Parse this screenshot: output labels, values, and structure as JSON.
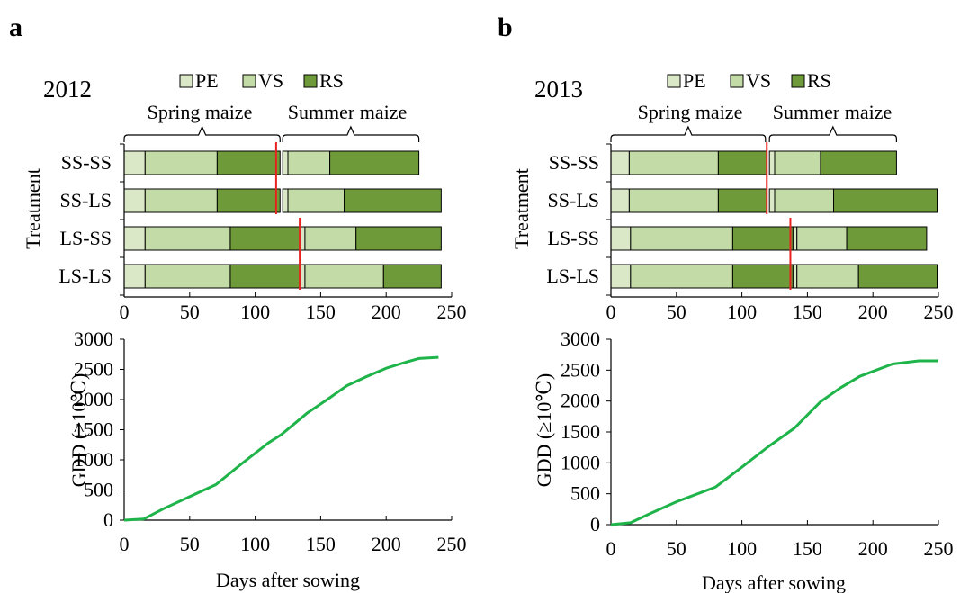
{
  "colors": {
    "pe": "#dbe8c7",
    "vs": "#c3dca7",
    "rs": "#6f9a3a",
    "gdd_line": "#1fb44a",
    "marker": "#e8231f",
    "axis": "#000000"
  },
  "panels": [
    {
      "panel_label": "a",
      "year": "2012",
      "legend": [
        "PE",
        "VS",
        "RS"
      ],
      "brace_labels": [
        "Spring maize",
        "Summer maize"
      ],
      "brace_ranges": [
        [
          0,
          119
        ],
        [
          121,
          225
        ]
      ],
      "gantt_ylabel": "Treatment",
      "gantt_xticks": [
        "0",
        "50",
        "100",
        "150",
        "200",
        "250"
      ],
      "gdd_ylabel": "GDD (≥10℃)",
      "gdd_yticks": [
        "0",
        "500",
        "1000",
        "1500",
        "2000",
        "2500",
        "3000"
      ],
      "gdd_xticks": [
        "0",
        "50",
        "100",
        "150",
        "200",
        "250"
      ],
      "xlabel": "Days after sowing"
    },
    {
      "panel_label": "b",
      "year": "2013",
      "legend": [
        "PE",
        "VS",
        "RS"
      ],
      "brace_labels": [
        "Spring maize",
        "Summer maize"
      ],
      "brace_ranges": [
        [
          0,
          118
        ],
        [
          121,
          218
        ]
      ],
      "gantt_ylabel": "Treatment",
      "gantt_xticks": [
        "0",
        "50",
        "100",
        "150",
        "200",
        "250"
      ],
      "gdd_ylabel": "GDD (≥10℃)",
      "gdd_yticks": [
        "0",
        "500",
        "1000",
        "1500",
        "2000",
        "2500",
        "3000"
      ],
      "gdd_xticks": [
        "0",
        "50",
        "100",
        "150",
        "200",
        "250"
      ],
      "xlabel": "Days after sowing"
    }
  ],
  "chart_data": [
    {
      "type": "bar",
      "subtype": "stacked-horizontal-timeline",
      "title": "2012",
      "ylabel": "Treatment",
      "xlim": [
        0,
        250
      ],
      "legend": [
        "PE",
        "VS",
        "RS"
      ],
      "rows": [
        {
          "treatment": "SS-SS",
          "segments": [
            [
              "PE",
              0,
              16
            ],
            [
              "VS",
              16,
              71
            ],
            [
              "RS",
              71,
              119
            ],
            [
              "PE",
              121,
              125
            ],
            [
              "VS",
              125,
              157
            ],
            [
              "RS",
              157,
              225
            ]
          ],
          "harvest_marker": 116
        },
        {
          "treatment": "SS-LS",
          "segments": [
            [
              "PE",
              0,
              16
            ],
            [
              "VS",
              16,
              71
            ],
            [
              "RS",
              71,
              119
            ],
            [
              "PE",
              121,
              125
            ],
            [
              "VS",
              125,
              168
            ],
            [
              "RS",
              168,
              242
            ]
          ],
          "harvest_marker": 116
        },
        {
          "treatment": "LS-SS",
          "segments": [
            [
              "PE",
              0,
              16
            ],
            [
              "VS",
              16,
              81
            ],
            [
              "RS",
              81,
              134
            ],
            [
              "PE",
              134,
              138
            ],
            [
              "VS",
              138,
              177
            ],
            [
              "RS",
              177,
              242
            ]
          ],
          "harvest_marker": 134
        },
        {
          "treatment": "LS-LS",
          "segments": [
            [
              "PE",
              0,
              16
            ],
            [
              "VS",
              16,
              81
            ],
            [
              "RS",
              81,
              134
            ],
            [
              "PE",
              134,
              138
            ],
            [
              "VS",
              138,
              198
            ],
            [
              "RS",
              198,
              242
            ]
          ],
          "harvest_marker": 134
        }
      ]
    },
    {
      "type": "line",
      "panel": "a",
      "xlabel": "Days after sowing",
      "ylabel": "GDD (≥10℃)",
      "xlim": [
        0,
        250
      ],
      "ylim": [
        0,
        3000
      ],
      "x": [
        0,
        15,
        30,
        50,
        70,
        90,
        110,
        120,
        130,
        140,
        155,
        170,
        185,
        200,
        215,
        225,
        240
      ],
      "y": [
        0,
        20,
        190,
        390,
        590,
        940,
        1280,
        1420,
        1600,
        1780,
        2000,
        2230,
        2380,
        2520,
        2620,
        2680,
        2700
      ]
    },
    {
      "type": "bar",
      "subtype": "stacked-horizontal-timeline",
      "title": "2013",
      "ylabel": "Treatment",
      "xlim": [
        0,
        250
      ],
      "legend": [
        "PE",
        "VS",
        "RS"
      ],
      "rows": [
        {
          "treatment": "SS-SS",
          "segments": [
            [
              "PE",
              0,
              14
            ],
            [
              "VS",
              14,
              82
            ],
            [
              "RS",
              82,
              119
            ],
            [
              "PE",
              121,
              125
            ],
            [
              "VS",
              125,
              160
            ],
            [
              "RS",
              160,
              218
            ]
          ],
          "harvest_marker": 119
        },
        {
          "treatment": "SS-LS",
          "segments": [
            [
              "PE",
              0,
              14
            ],
            [
              "VS",
              14,
              82
            ],
            [
              "RS",
              82,
              119
            ],
            [
              "PE",
              121,
              125
            ],
            [
              "VS",
              125,
              170
            ],
            [
              "RS",
              170,
              249
            ]
          ],
          "harvest_marker": 119
        },
        {
          "treatment": "LS-SS",
          "segments": [
            [
              "PE",
              0,
              15
            ],
            [
              "VS",
              15,
              93
            ],
            [
              "RS",
              93,
              139
            ],
            [
              "PE",
              139,
              142
            ],
            [
              "VS",
              142,
              180
            ],
            [
              "RS",
              180,
              241
            ]
          ],
          "harvest_marker": 137
        },
        {
          "treatment": "LS-LS",
          "segments": [
            [
              "PE",
              0,
              15
            ],
            [
              "VS",
              15,
              93
            ],
            [
              "RS",
              93,
              139
            ],
            [
              "PE",
              139,
              142
            ],
            [
              "VS",
              142,
              189
            ],
            [
              "RS",
              189,
              249
            ]
          ],
          "harvest_marker": 137
        }
      ]
    },
    {
      "type": "line",
      "panel": "b",
      "xlabel": "Days after sowing",
      "ylabel": "GDD (≥10℃)",
      "xlim": [
        0,
        250
      ],
      "ylim": [
        0,
        3000
      ],
      "x": [
        0,
        15,
        30,
        50,
        80,
        100,
        120,
        140,
        160,
        175,
        190,
        215,
        235,
        250
      ],
      "y": [
        0,
        30,
        180,
        370,
        610,
        930,
        1260,
        1560,
        1990,
        2210,
        2400,
        2600,
        2650,
        2650
      ]
    }
  ]
}
